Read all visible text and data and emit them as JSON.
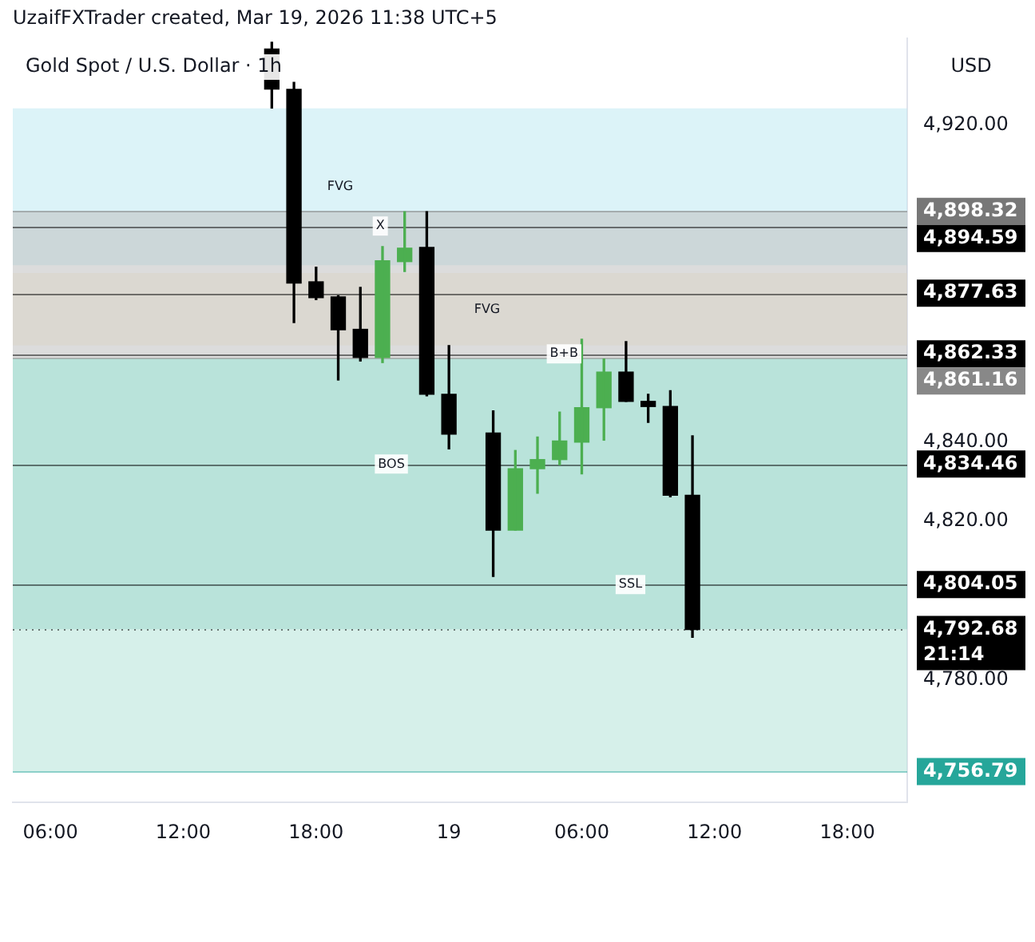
{
  "chart_data": {
    "type": "candlestick",
    "title": "Gold Spot / U.S. Dollar · 1h",
    "ylabel": "USD",
    "x": [
      "2026-03-18T16:00",
      "2026-03-18T17:00",
      "2026-03-18T18:00",
      "2026-03-18T19:00",
      "2026-03-18T20:00",
      "2026-03-18T21:00",
      "2026-03-18T22:00",
      "2026-03-18T23:00",
      "2026-03-19T00:00",
      "2026-03-19T02:00",
      "2026-03-19T03:00",
      "2026-03-19T04:00",
      "2026-03-19T05:00",
      "2026-03-19T06:00",
      "2026-03-19T07:00",
      "2026-03-19T08:00",
      "2026-03-19T09:00",
      "2026-03-19T10:00",
      "2026-03-19T11:00"
    ],
    "ohlc": [
      [
        4939.3,
        4941,
        4924.4,
        4929.2
      ],
      [
        4929.1,
        4930.9,
        4870.2,
        4880.2
      ],
      [
        4880.5,
        4884.2,
        4876,
        4876.5
      ],
      [
        4876.7,
        4877,
        4855.7,
        4868.4
      ],
      [
        4868.5,
        4879.1,
        4860.5,
        4861.4
      ],
      [
        4861.4,
        4889.4,
        4860.1,
        4885.8
      ],
      [
        4885.6,
        4898.2,
        4883.1,
        4889
      ],
      [
        4889.2,
        4898.2,
        4851.7,
        4852.1
      ],
      [
        4852.1,
        4864.4,
        4838.3,
        4842
      ],
      [
        4842.3,
        4847.9,
        4806.1,
        4817.8
      ],
      [
        4817.8,
        4837.9,
        4817.8,
        4833.3
      ],
      [
        4833.3,
        4841.3,
        4827.1,
        4835.6
      ],
      [
        4835.6,
        4847.6,
        4834.3,
        4840.3
      ],
      [
        4840,
        4866,
        4832,
        4848.7
      ],
      [
        4848.7,
        4861,
        4840.5,
        4857.7
      ],
      [
        4857.7,
        4865.4,
        4850.3,
        4850.3
      ],
      [
        4850.3,
        4852.1,
        4845,
        4849
      ],
      [
        4849,
        4853,
        4826.2,
        4826.6
      ],
      [
        4826.6,
        4841.6,
        4790.7,
        4792.68
      ]
    ],
    "colors": [
      "#000000",
      "#000000",
      "#000000",
      "#000000",
      "#000000",
      "#4caf50",
      "#4caf50",
      "#000000",
      "#000000",
      "#000000",
      "#4caf50",
      "#4caf50",
      "#4caf50",
      "#4caf50",
      "#4caf50",
      "#000000",
      "#000000",
      "#000000",
      "#000000"
    ],
    "xlim": [
      "2026-03-18T04:18",
      "2026-03-19T20:42"
    ],
    "xticks": [
      {
        "value": "2026-03-18T06:00",
        "label": "06:00"
      },
      {
        "value": "2026-03-18T12:00",
        "label": "12:00"
      },
      {
        "value": "2026-03-18T18:00",
        "label": "18:00"
      },
      {
        "value": "2026-03-19T00:00",
        "label": "19"
      },
      {
        "value": "2026-03-19T06:00",
        "label": "06:00"
      },
      {
        "value": "2026-03-19T12:00",
        "label": "12:00"
      },
      {
        "value": "2026-03-19T18:00",
        "label": "18:00"
      }
    ],
    "ylim": [
      4749,
      4942
    ],
    "yticks": [
      {
        "value": 4920,
        "label": "4,920.00"
      },
      {
        "value": 4840,
        "label": "4,840.00"
      },
      {
        "value": 4820,
        "label": "4,820.00"
      },
      {
        "value": 4780,
        "label": "4,780.00"
      }
    ],
    "grid": false,
    "legend": false,
    "bands": [
      {
        "axis": "y",
        "from": 4884.7,
        "to": 4924.3,
        "color": "#bfe9f2",
        "label": "FVG"
      },
      {
        "axis": "y",
        "from": 4864.4,
        "to": 4882.7,
        "color": "#fcefd3",
        "label": "FVG"
      },
      {
        "axis": "y",
        "from": 4861.16,
        "to": 4898.32,
        "color": "#c0c0c0"
      },
      {
        "axis": "y",
        "from": 4792.68,
        "to": 4861.16,
        "color": "#7fccbc"
      },
      {
        "axis": "y",
        "from": 4756.79,
        "to": 4792.68,
        "color": "#b5e3d9"
      }
    ],
    "ref_lines": [
      {
        "axis": "y",
        "value": 4898.32,
        "label": "4,898.32",
        "color": "#777777"
      },
      {
        "axis": "y",
        "value": 4894.59,
        "label": "4,894.59",
        "color": "#000000"
      },
      {
        "axis": "y",
        "value": 4877.63,
        "label": "4,877.63",
        "color": "#000000"
      },
      {
        "axis": "y",
        "value": 4862.33,
        "label": "4,862.33",
        "color": "#000000"
      },
      {
        "axis": "y",
        "value": 4861.16,
        "label": "4,861.16",
        "color": "#888888"
      },
      {
        "axis": "y",
        "value": 4834.46,
        "label": "4,834.46",
        "color": "#000000"
      },
      {
        "axis": "y",
        "value": 4804.05,
        "label": "4,804.05",
        "color": "#000000"
      },
      {
        "axis": "y",
        "value": 4792.68,
        "label": "4,792.68\n21:14",
        "color": "#000000",
        "line_style": "dotted"
      },
      {
        "axis": "y",
        "value": 4756.79,
        "label": "4,756.79",
        "color": "#26a69a"
      }
    ],
    "annotations": [
      "UzaifFXTrader created, Mar 19, 2026 11:38 UTC+5",
      {
        "text": "X",
        "x": "2026-03-18T20:54",
        "y": 4894.59
      },
      {
        "text": "B+B",
        "x": "2026-03-19T05:12",
        "y": 4862.33
      },
      {
        "text": "BOS",
        "x": "2026-03-18T21:24",
        "y": 4834.46
      },
      {
        "text": "SSL",
        "x": "2026-03-19T08:12",
        "y": 4804.05
      }
    ]
  }
}
